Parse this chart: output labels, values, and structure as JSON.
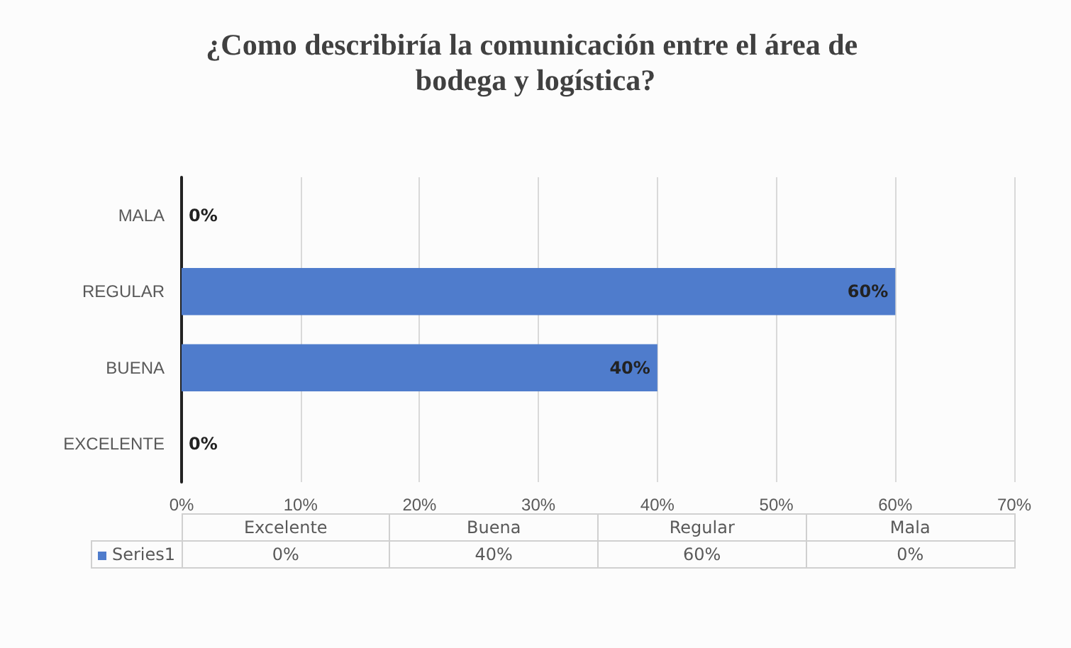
{
  "chart_data": {
    "type": "bar",
    "orientation": "horizontal",
    "title": "¿Como describiría la comunicación entre el área de bodega y logística?",
    "categories": [
      "MALA",
      "REGULAR",
      "BUENA",
      "EXCELENTE"
    ],
    "series": [
      {
        "name": "Series1",
        "color": "#4f7ccc",
        "values": [
          0,
          60,
          40,
          0
        ],
        "value_labels": [
          "0%",
          "60%",
          "40%",
          "0%"
        ]
      }
    ],
    "xlim": [
      0,
      70
    ],
    "xticks": [
      {
        "value": 0,
        "label": "0%"
      },
      {
        "value": 10,
        "label": "10%"
      },
      {
        "value": 20,
        "label": "20%"
      },
      {
        "value": 30,
        "label": "30%"
      },
      {
        "value": 40,
        "label": "40%"
      },
      {
        "value": 50,
        "label": "50%"
      },
      {
        "value": 60,
        "label": "60%"
      },
      {
        "value": 70,
        "label": "70%"
      }
    ],
    "grid": "x",
    "annotations": [
      "Excelente",
      "Buena",
      "Regular",
      "Mala"
    ]
  }
}
